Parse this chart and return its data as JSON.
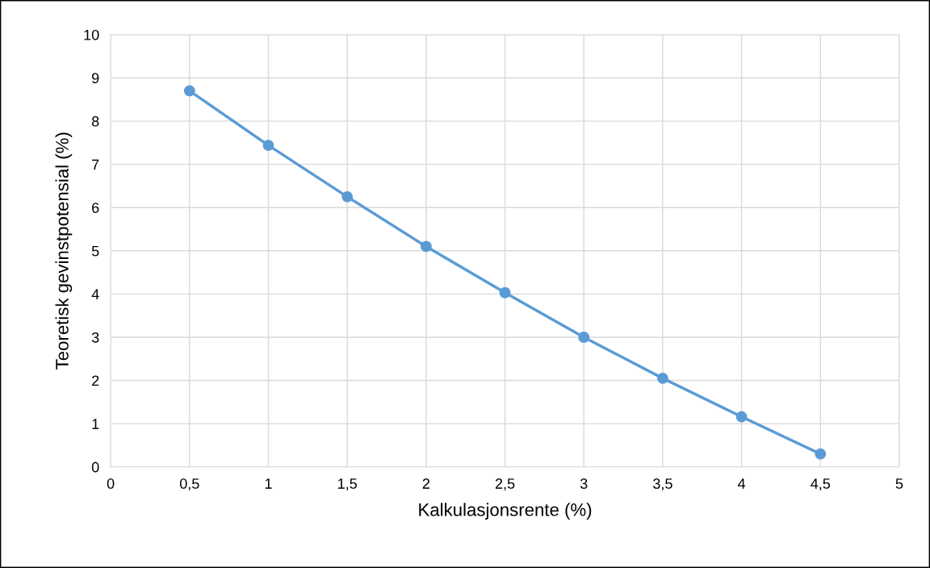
{
  "chart_data": {
    "type": "line",
    "xlabel": "Kalkulasjonsrente (%)",
    "ylabel": "Teoretisk gevinstpotensial (%)",
    "x": [
      0.5,
      1,
      1.5,
      2,
      2.5,
      3,
      3.5,
      4,
      4.5
    ],
    "series": [
      {
        "color": "#5b9bd5",
        "values": [
          8.7,
          7.44,
          6.25,
          5.1,
          4.03,
          3.0,
          2.05,
          1.16,
          0.3
        ]
      }
    ],
    "xlim": [
      0,
      5
    ],
    "xticks": [
      0,
      {
        "value": 0.5,
        "label": "0,5"
      },
      1,
      {
        "value": 1.5,
        "label": "1,5"
      },
      2,
      {
        "value": 2.5,
        "label": "2,5"
      },
      3,
      {
        "value": 3.5,
        "label": "3,5"
      },
      4,
      {
        "value": 4.5,
        "label": "4,5"
      },
      5
    ],
    "ylim": [
      0,
      10
    ],
    "yticks": [
      0,
      1,
      2,
      3,
      4,
      5,
      6,
      7,
      8,
      9,
      10
    ],
    "grid": true,
    "marker": "circle",
    "line_style": "solid"
  }
}
